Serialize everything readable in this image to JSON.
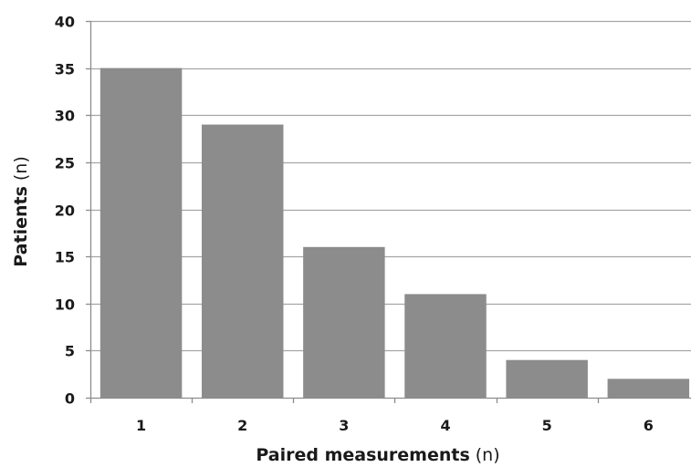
{
  "chart_data": {
    "type": "bar",
    "categories": [
      "1",
      "2",
      "3",
      "4",
      "5",
      "6"
    ],
    "values": [
      35,
      29,
      16,
      11,
      4,
      2
    ],
    "title": "",
    "xlabel": "Paired measurements (n)",
    "xlabel_bold_part": "Paired measurements",
    "xlabel_unit_part": "(n)",
    "ylabel": "Patients (n)",
    "ylabel_bold_part": "Patients",
    "ylabel_unit_part": "(n)",
    "ylim": [
      0,
      40
    ],
    "yticks": [
      "0",
      "5",
      "10",
      "15",
      "20",
      "25",
      "30",
      "35",
      "40"
    ],
    "grid": true,
    "legend": "none",
    "bar_color": "#8c8c8c",
    "grid_color": "#a6a6a6"
  }
}
